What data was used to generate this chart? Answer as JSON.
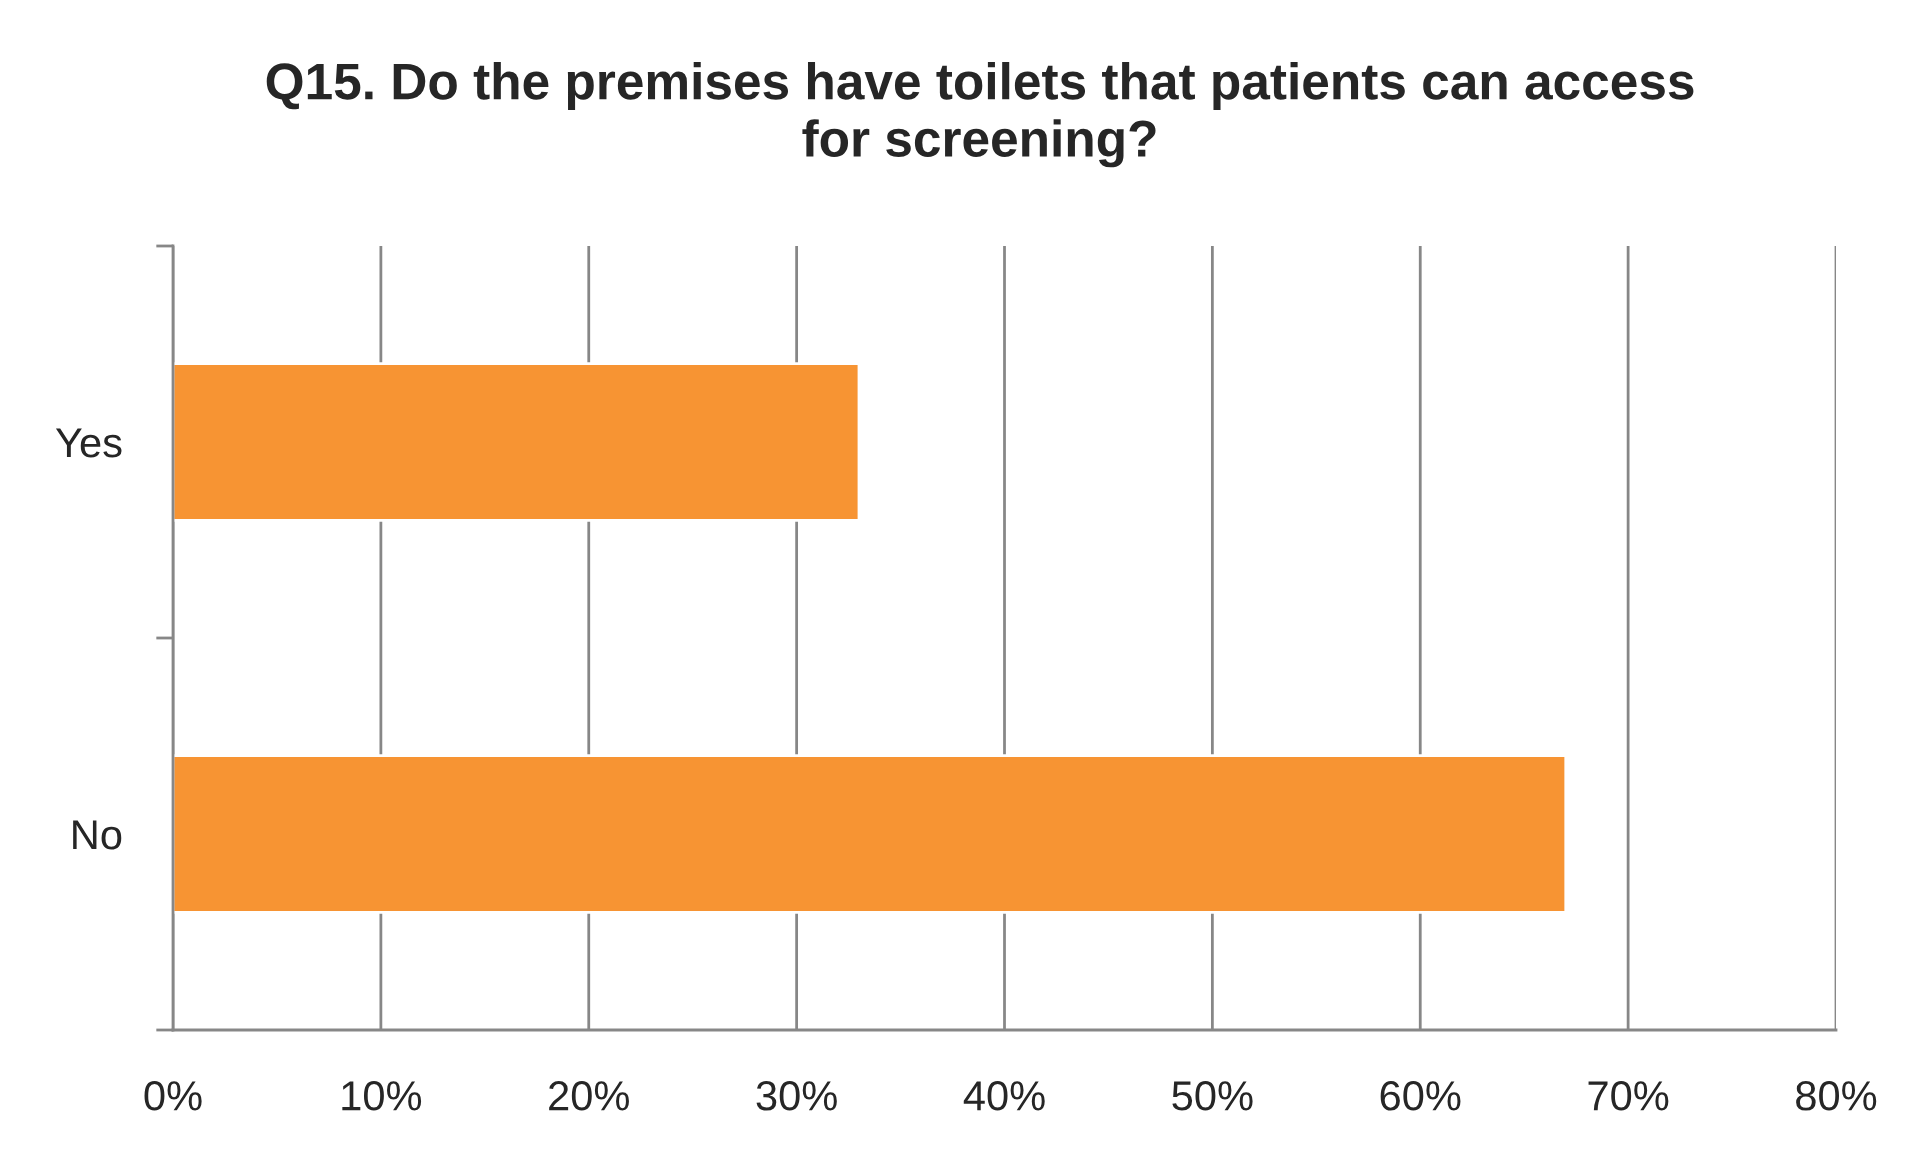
{
  "chart_data": {
    "type": "bar",
    "orientation": "horizontal",
    "title": "Q15. Do the premises have toilets that patients can access for screening?",
    "categories": [
      "Yes",
      "No"
    ],
    "values": [
      33,
      67
    ],
    "color": "#f79433",
    "xlim": [
      0,
      80
    ],
    "xticks": [
      {
        "value": 0,
        "label": "0%"
      },
      {
        "value": 10,
        "label": "10%"
      },
      {
        "value": 20,
        "label": "20%"
      },
      {
        "value": 30,
        "label": "30%"
      },
      {
        "value": 40,
        "label": "40%"
      },
      {
        "value": 50,
        "label": "50%"
      },
      {
        "value": 60,
        "label": "60%"
      },
      {
        "value": 70,
        "label": "70%"
      },
      {
        "value": 80,
        "label": "80%"
      }
    ],
    "grid": "x"
  }
}
